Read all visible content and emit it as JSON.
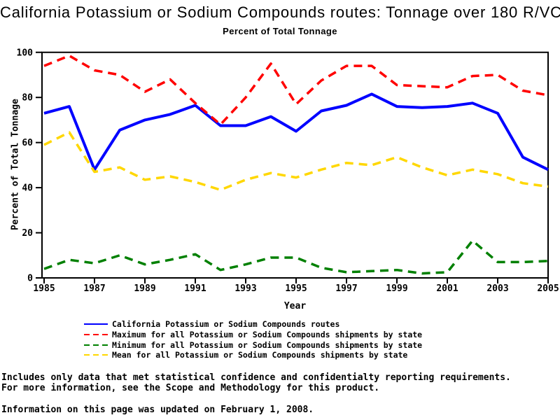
{
  "title": "California Potassium or Sodium Compounds routes: Tonnage over 180 R/VC",
  "subtitle": "Percent of Total Tonnage",
  "chart_data": {
    "type": "line",
    "x": [
      1985,
      1986,
      1987,
      1988,
      1989,
      1990,
      1991,
      1992,
      1993,
      1994,
      1995,
      1996,
      1997,
      1998,
      1999,
      2000,
      2001,
      2002,
      2003,
      2004,
      2005
    ],
    "series": [
      {
        "name": "California Potassium or Sodium Compounds routes",
        "color": "#0000ff",
        "style": "solid",
        "values": [
          73,
          76,
          48,
          65.5,
          70,
          72.5,
          76.5,
          67.5,
          67.5,
          71.5,
          65,
          74,
          76.5,
          81.5,
          76,
          75.5,
          76,
          77.5,
          73,
          53.5,
          48
        ]
      },
      {
        "name": "Maximum for all Potassium or Sodium Compounds shipments by state",
        "color": "#ff0000",
        "style": "dashed",
        "values": [
          94,
          98.5,
          92,
          90,
          82.5,
          88,
          77.5,
          68,
          80,
          95,
          77,
          87.5,
          94,
          94,
          85.5,
          85,
          84.5,
          89.5,
          90,
          83,
          81
        ]
      },
      {
        "name": "Minimum for all Potassium or Sodium Compounds shipments by state",
        "color": "#008000",
        "style": "dashed",
        "values": [
          4,
          8,
          6.5,
          10,
          6,
          8,
          10.5,
          3.5,
          6,
          9,
          9,
          4.5,
          2.5,
          3,
          3.5,
          2,
          2.5,
          16.5,
          7,
          7,
          7.5
        ]
      },
      {
        "name": "Mean for all Potassium or Sodium Compounds shipments by state",
        "color": "#ffd700",
        "style": "dashed",
        "values": [
          59,
          64.5,
          47,
          49,
          43.5,
          45,
          42.5,
          39,
          43.5,
          46.5,
          44.5,
          48,
          51,
          50,
          53.5,
          49,
          45.5,
          48,
          46,
          42,
          40.5
        ]
      }
    ],
    "xlabel": "Year",
    "ylabel": "Percent of Total Tonnage",
    "ylim": [
      0,
      100
    ],
    "yticks": [
      0,
      20,
      40,
      60,
      80,
      100
    ],
    "xticks": [
      1985,
      1987,
      1989,
      1991,
      1993,
      1995,
      1997,
      1999,
      2001,
      2003,
      2005
    ],
    "grid": false,
    "legend_position": "bottom"
  },
  "footnotes": {
    "line1": "Includes only data that met statistical confidence and confidentialty reporting requirements.",
    "line2": "For more information, see the Scope and Methodology for this product.",
    "updated": "Information on this page was updated on February 1, 2008."
  }
}
